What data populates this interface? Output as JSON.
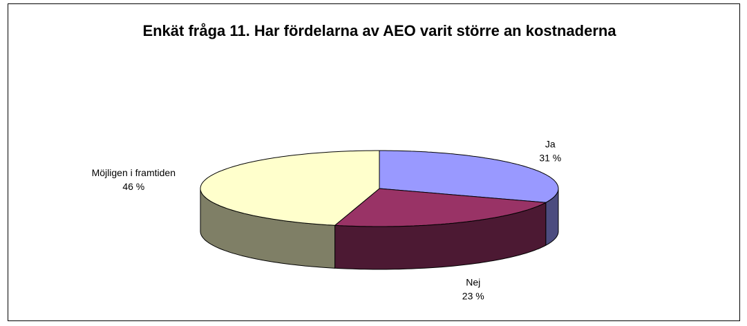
{
  "chart_data": {
    "type": "pie3d",
    "title": "Enkät fråga 11. Har fördelarna av AEO varit större an kostnaderna",
    "categories": [
      "Ja",
      "Nej",
      "Möjligen i framtiden"
    ],
    "values": [
      31,
      23,
      46
    ],
    "value_labels": [
      "31 %",
      "23 %",
      "46 %"
    ],
    "colors": [
      "#9999ff",
      "#993366",
      "#ffffcc"
    ]
  }
}
